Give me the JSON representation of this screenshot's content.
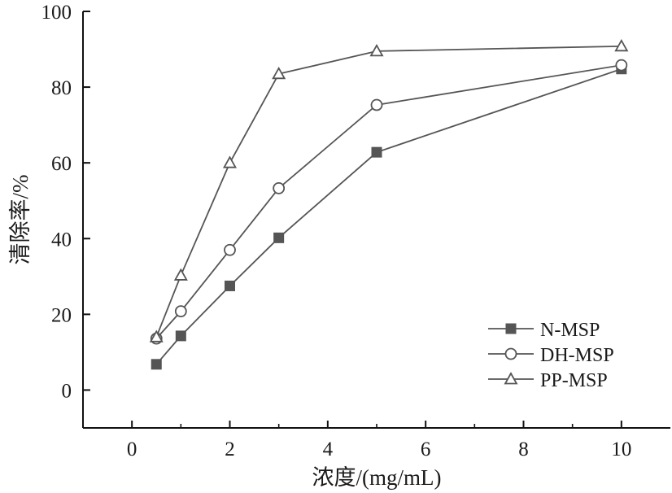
{
  "chart_data": {
    "type": "line",
    "title": "",
    "xlabel": "浓度/(mg/mL)",
    "ylabel": "清除率/%",
    "xlim": [
      -1,
      11
    ],
    "ylim": [
      -10,
      100
    ],
    "xticks": [
      0,
      2,
      4,
      6,
      8,
      10
    ],
    "yticks": [
      0,
      20,
      40,
      60,
      80,
      100
    ],
    "xtick_labels": [
      "0",
      "2",
      "4",
      "6",
      "8",
      "10"
    ],
    "ytick_labels": [
      "0",
      "20",
      "40",
      "60",
      "80",
      "100"
    ],
    "grid": false,
    "legend_position": "bottom-right",
    "x": [
      0.5,
      1,
      2,
      3,
      5,
      10
    ],
    "series": [
      {
        "name": "N-MSP",
        "marker": "filled-square",
        "values": [
          6.8,
          14.3,
          27.5,
          40.2,
          62.8,
          84.8
        ]
      },
      {
        "name": "DH-MSP",
        "marker": "open-circle",
        "values": [
          13.6,
          20.8,
          37.0,
          53.3,
          75.3,
          85.8
        ]
      },
      {
        "name": "PP-MSP",
        "marker": "open-triangle",
        "values": [
          14.0,
          30.3,
          60.0,
          83.5,
          89.5,
          90.8
        ]
      }
    ],
    "colors": {
      "line": "#555555",
      "marker_fill": "#555555",
      "axis": "#111111",
      "text": "#1a1a1a"
    }
  }
}
